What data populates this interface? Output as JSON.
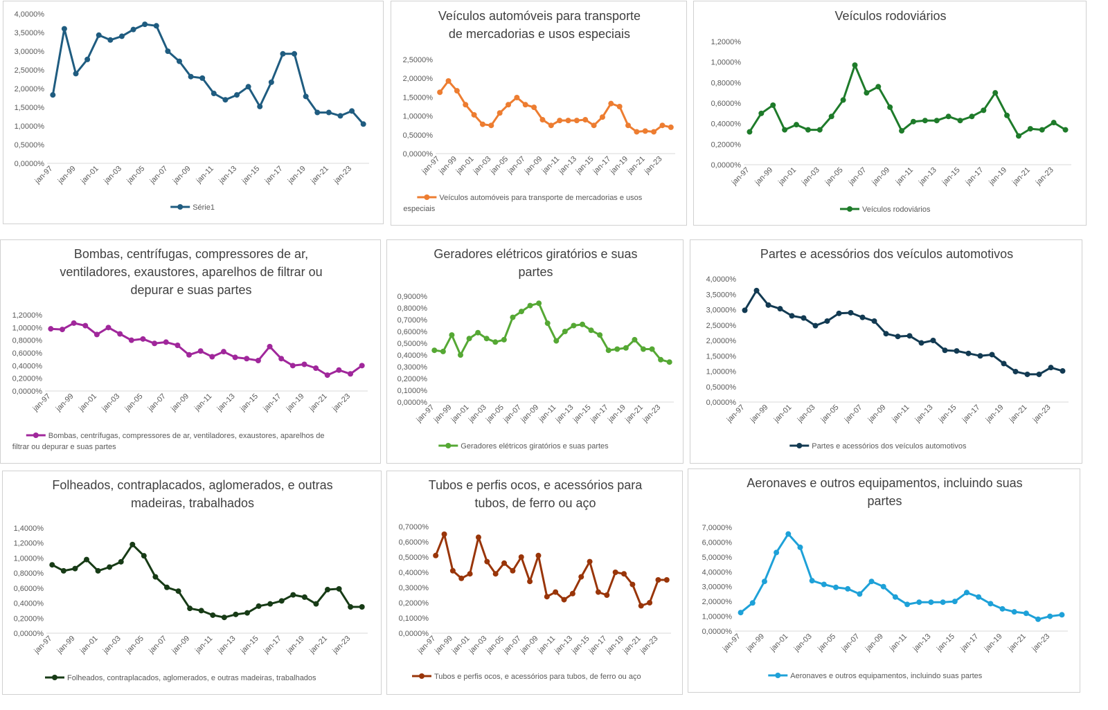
{
  "chart_data": [
    {
      "type": "line",
      "title": "",
      "color": "#1f5c80",
      "x": [
        "jan-97",
        "jan-98",
        "jan-99",
        "jan-00",
        "jan-01",
        "jan-02",
        "jan-03",
        "jan-04",
        "jan-05",
        "jan-06",
        "jan-07",
        "jan-08",
        "jan-09",
        "jan-10",
        "jan-11",
        "jan-12",
        "jan-13",
        "jan-14",
        "jan-15",
        "jan-16",
        "jan-17",
        "jan-18",
        "jan-19",
        "jan-20",
        "jan-21",
        "jan-22",
        "jan-23",
        "jan-24"
      ],
      "tick_labels": [
        "jan-97",
        "jan-99",
        "jan-01",
        "jan-03",
        "jan-05",
        "jan-07",
        "jan-09",
        "jan-11",
        "jan-13",
        "jan-15",
        "jan-17",
        "jan-19",
        "jan-21",
        "jan-23"
      ],
      "y_ticks": [
        "0,0000%",
        "0,5000%",
        "1,0000%",
        "1,5000%",
        "2,0000%",
        "2,5000%",
        "3,0000%",
        "3,5000%",
        "4,0000%"
      ],
      "ylim": [
        0,
        4.0
      ],
      "series": [
        {
          "name": "Série1",
          "values": [
            1.83,
            3.6,
            2.4,
            2.78,
            3.43,
            3.3,
            3.4,
            3.58,
            3.72,
            3.68,
            3.0,
            2.73,
            2.32,
            2.28,
            1.87,
            1.7,
            1.83,
            2.05,
            1.52,
            2.17,
            2.93,
            2.93,
            1.79,
            1.36,
            1.36,
            1.27,
            1.4,
            1.05
          ]
        }
      ],
      "legend": "bottom"
    },
    {
      "type": "line",
      "title": "Veículos automóveis para transporte de mercadorias e usos especiais",
      "color": "#ed7d31",
      "x": [
        "jan-97",
        "jan-98",
        "jan-99",
        "jan-00",
        "jan-01",
        "jan-02",
        "jan-03",
        "jan-04",
        "jan-05",
        "jan-06",
        "jan-07",
        "jan-08",
        "jan-09",
        "jan-10",
        "jan-11",
        "jan-12",
        "jan-13",
        "jan-14",
        "jan-15",
        "jan-16",
        "jan-17",
        "jan-18",
        "jan-19",
        "jan-20",
        "jan-21",
        "jan-22",
        "jan-23",
        "jan-24"
      ],
      "tick_labels": [
        "jan-97",
        "jan-99",
        "jan-01",
        "jan-03",
        "jan-05",
        "jan-07",
        "jan-09",
        "jan-11",
        "jan-13",
        "jan-15",
        "jan-17",
        "jan-19",
        "jan-21",
        "jan-23"
      ],
      "y_ticks": [
        "0,0000%",
        "0,5000%",
        "1,0000%",
        "1,5000%",
        "2,0000%",
        "2,5000%"
      ],
      "ylim": [
        0,
        2.5
      ],
      "series": [
        {
          "name": "Veículos automóveis para transporte de mercadorias e usos especiais",
          "values": [
            1.63,
            1.93,
            1.67,
            1.3,
            1.03,
            0.78,
            0.75,
            1.08,
            1.3,
            1.49,
            1.3,
            1.23,
            0.9,
            0.75,
            0.88,
            0.88,
            0.88,
            0.9,
            0.75,
            0.97,
            1.33,
            1.25,
            0.75,
            0.58,
            0.6,
            0.58,
            0.75,
            0.7
          ]
        }
      ],
      "legend": "bottom"
    },
    {
      "type": "line",
      "title": "Veículos rodoviários",
      "color": "#1e7b2a",
      "x": [
        "jan-97",
        "jan-98",
        "jan-99",
        "jan-00",
        "jan-01",
        "jan-02",
        "jan-03",
        "jan-04",
        "jan-05",
        "jan-06",
        "jan-07",
        "jan-08",
        "jan-09",
        "jan-10",
        "jan-11",
        "jan-12",
        "jan-13",
        "jan-14",
        "jan-15",
        "jan-16",
        "jan-17",
        "jan-18",
        "jan-19",
        "jan-20",
        "jan-21",
        "jan-22",
        "jan-23",
        "jan-24"
      ],
      "tick_labels": [
        "jan-97",
        "jan-99",
        "jan-01",
        "jan-03",
        "jan-05",
        "jan-07",
        "jan-09",
        "jan-11",
        "jan-13",
        "jan-15",
        "jan-17",
        "jan-19",
        "jan-21",
        "jan-23"
      ],
      "y_ticks": [
        "0,0000%",
        "0,2000%",
        "0,4000%",
        "0,6000%",
        "0,8000%",
        "1,0000%",
        "1,2000%"
      ],
      "ylim": [
        0,
        1.2
      ],
      "series": [
        {
          "name": "Veículos rodoviários",
          "values": [
            0.32,
            0.5,
            0.58,
            0.34,
            0.39,
            0.34,
            0.34,
            0.47,
            0.63,
            0.97,
            0.7,
            0.76,
            0.56,
            0.33,
            0.42,
            0.43,
            0.43,
            0.47,
            0.43,
            0.47,
            0.53,
            0.7,
            0.48,
            0.28,
            0.35,
            0.34,
            0.41,
            0.34
          ]
        }
      ],
      "legend": "bottom"
    },
    {
      "type": "line",
      "title": "Bombas, centrífugas, compressores de ar, ventiladores, exaustores, aparelhos de filtrar ou depurar e suas partes",
      "color": "#a0279b",
      "x": [
        "jan-97",
        "jan-98",
        "jan-99",
        "jan-00",
        "jan-01",
        "jan-02",
        "jan-03",
        "jan-04",
        "jan-05",
        "jan-06",
        "jan-07",
        "jan-08",
        "jan-09",
        "jan-10",
        "jan-11",
        "jan-12",
        "jan-13",
        "jan-14",
        "jan-15",
        "jan-16",
        "jan-17",
        "jan-18",
        "jan-19",
        "jan-20",
        "jan-21",
        "jan-22",
        "jan-23",
        "jan-24"
      ],
      "tick_labels": [
        "jan-97",
        "jan-99",
        "jan-01",
        "jan-03",
        "jan-05",
        "jan-07",
        "jan-09",
        "jan-11",
        "jan-13",
        "jan-15",
        "jan-17",
        "jan-19",
        "jan-21",
        "jan-23"
      ],
      "y_ticks": [
        "0,0000%",
        "0,2000%",
        "0,4000%",
        "0,6000%",
        "0,8000%",
        "1,0000%",
        "1,2000%"
      ],
      "ylim": [
        0,
        1.2
      ],
      "series": [
        {
          "name": "Bombas, centrífugas, compressores de ar, ventiladores, exaustores, aparelhos de filtrar ou depurar e suas partes",
          "values": [
            0.98,
            0.97,
            1.07,
            1.03,
            0.89,
            1.0,
            0.9,
            0.8,
            0.82,
            0.75,
            0.77,
            0.72,
            0.57,
            0.63,
            0.54,
            0.62,
            0.53,
            0.51,
            0.48,
            0.7,
            0.51,
            0.4,
            0.42,
            0.36,
            0.25,
            0.33,
            0.27,
            0.4
          ]
        }
      ],
      "legend": "bottom"
    },
    {
      "type": "line",
      "title": "Geradores elétricos giratórios e suas partes",
      "color": "#55a834",
      "x": [
        "jan-97",
        "jan-98",
        "jan-99",
        "jan-00",
        "jan-01",
        "jan-02",
        "jan-03",
        "jan-04",
        "jan-05",
        "jan-06",
        "jan-07",
        "jan-08",
        "jan-09",
        "jan-10",
        "jan-11",
        "jan-12",
        "jan-13",
        "jan-14",
        "jan-15",
        "jan-16",
        "jan-17",
        "jan-18",
        "jan-19",
        "jan-20",
        "jan-21",
        "jan-22",
        "jan-23",
        "jan-24"
      ],
      "tick_labels": [
        "jan-97",
        "jan-99",
        "jan-01",
        "jan-03",
        "jan-05",
        "jan-07",
        "jan-09",
        "jan-11",
        "jan-13",
        "jan-15",
        "jan-17",
        "jan-19",
        "jan-21",
        "jan-23"
      ],
      "y_ticks": [
        "0,0000%",
        "0,1000%",
        "0,2000%",
        "0,3000%",
        "0,4000%",
        "0,5000%",
        "0,6000%",
        "0,7000%",
        "0,8000%",
        "0,9000%"
      ],
      "ylim": [
        0,
        0.9
      ],
      "series": [
        {
          "name": "Geradores elétricos giratórios e suas partes",
          "values": [
            0.44,
            0.43,
            0.57,
            0.4,
            0.54,
            0.59,
            0.54,
            0.51,
            0.53,
            0.72,
            0.77,
            0.82,
            0.84,
            0.67,
            0.52,
            0.6,
            0.65,
            0.66,
            0.61,
            0.57,
            0.44,
            0.45,
            0.46,
            0.53,
            0.45,
            0.45,
            0.36,
            0.34
          ]
        }
      ],
      "legend": "bottom"
    },
    {
      "type": "line",
      "title": "Partes e acessórios dos veículos automotivos",
      "color": "#123a52",
      "x": [
        "jan-97",
        "jan-98",
        "jan-99",
        "jan-00",
        "jan-01",
        "jan-02",
        "jan-03",
        "jan-04",
        "jan-05",
        "jan-06",
        "jan-07",
        "jan-08",
        "jan-09",
        "jan-10",
        "jan-11",
        "jan-12",
        "jan-13",
        "jan-14",
        "jan-15",
        "jan-16",
        "jan-17",
        "jan-18",
        "jan-19",
        "jan-20",
        "jan-21",
        "jan-22",
        "jan-23",
        "jan-24"
      ],
      "tick_labels": [
        "jan-97",
        "jan-99",
        "jan-01",
        "jan-03",
        "jan-05",
        "jan-07",
        "jan-09",
        "jan-11",
        "jan-13",
        "jan-15",
        "jan-17",
        "jan-19",
        "jan-21",
        "jan-23"
      ],
      "y_ticks": [
        "0,0000%",
        "0,5000%",
        "1,0000%",
        "1,5000%",
        "2,0000%",
        "2,5000%",
        "3,0000%",
        "3,5000%",
        "4,0000%"
      ],
      "ylim": [
        0,
        4.0
      ],
      "series": [
        {
          "name": "Partes e acessórios dos veículos automotivos",
          "values": [
            2.98,
            3.62,
            3.15,
            3.03,
            2.8,
            2.73,
            2.48,
            2.63,
            2.88,
            2.9,
            2.75,
            2.63,
            2.22,
            2.13,
            2.15,
            1.92,
            2.0,
            1.68,
            1.66,
            1.58,
            1.5,
            1.54,
            1.25,
            0.99,
            0.9,
            0.9,
            1.12,
            1.01
          ]
        }
      ],
      "legend": "bottom"
    },
    {
      "type": "line",
      "title": "Folheados, contraplacados, aglomerados, e outras madeiras, trabalhados",
      "color": "#173b16",
      "x": [
        "jan-97",
        "jan-98",
        "jan-99",
        "jan-00",
        "jan-01",
        "jan-02",
        "jan-03",
        "jan-04",
        "jan-05",
        "jan-06",
        "jan-07",
        "jan-08",
        "jan-09",
        "jan-10",
        "jan-11",
        "jan-12",
        "jan-13",
        "jan-14",
        "jan-15",
        "jan-16",
        "jan-17",
        "jan-18",
        "jan-19",
        "jan-20",
        "jan-21",
        "jan-22",
        "jan-23",
        "jan-24"
      ],
      "tick_labels": [
        "jan-97",
        "jan-99",
        "jan-01",
        "jan-03",
        "jan-05",
        "jan-07",
        "jan-09",
        "jan-11",
        "jan-13",
        "jan-15",
        "jan-17",
        "jan-19",
        "jan-21",
        "jan-23"
      ],
      "y_ticks": [
        "0,0000%",
        "0,2000%",
        "0,4000%",
        "0,6000%",
        "0,8000%",
        "1,0000%",
        "1,2000%",
        "1,4000%"
      ],
      "ylim": [
        0,
        1.4
      ],
      "series": [
        {
          "name": "Folheados, contraplacados, aglomerados, e outras madeiras, trabalhados",
          "values": [
            0.91,
            0.83,
            0.86,
            0.98,
            0.83,
            0.88,
            0.95,
            1.18,
            1.03,
            0.75,
            0.61,
            0.56,
            0.33,
            0.3,
            0.24,
            0.21,
            0.25,
            0.27,
            0.36,
            0.39,
            0.43,
            0.51,
            0.48,
            0.39,
            0.58,
            0.59,
            0.35,
            0.35
          ]
        }
      ],
      "legend": "bottom"
    },
    {
      "type": "line",
      "title": "Tubos e perfis ocos, e acessórios para tubos, de ferro ou aço",
      "color": "#993509",
      "x": [
        "jan-97",
        "jan-98",
        "jan-99",
        "jan-00",
        "jan-01",
        "jan-02",
        "jan-03",
        "jan-04",
        "jan-05",
        "jan-06",
        "jan-07",
        "jan-08",
        "jan-09",
        "jan-10",
        "jan-11",
        "jan-12",
        "jan-13",
        "jan-14",
        "jan-15",
        "jan-16",
        "jan-17",
        "jan-18",
        "jan-19",
        "jan-20",
        "jan-21",
        "jan-22",
        "jan-23",
        "jan-24"
      ],
      "tick_labels": [
        "jan-97",
        "jan-99",
        "jan-01",
        "jan-03",
        "jan-05",
        "jan-07",
        "jan-09",
        "jan-11",
        "jan-13",
        "jan-15",
        "jan-17",
        "jan-19",
        "jan-21",
        "jan-23"
      ],
      "y_ticks": [
        "0,0000%",
        "0,1000%",
        "0,2000%",
        "0,3000%",
        "0,4000%",
        "0,5000%",
        "0,6000%",
        "0,7000%"
      ],
      "ylim": [
        0,
        0.7
      ],
      "series": [
        {
          "name": "Tubos e perfis ocos, e acessórios para tubos, de ferro ou aço",
          "values": [
            0.51,
            0.65,
            0.41,
            0.36,
            0.39,
            0.63,
            0.47,
            0.39,
            0.46,
            0.41,
            0.5,
            0.34,
            0.51,
            0.24,
            0.27,
            0.22,
            0.26,
            0.37,
            0.47,
            0.27,
            0.25,
            0.4,
            0.39,
            0.32,
            0.18,
            0.2,
            0.35,
            0.35
          ]
        }
      ],
      "legend": "bottom"
    },
    {
      "type": "line",
      "title": "Aeronaves e outros equipamentos, incluindo suas partes",
      "color": "#1ea1d8",
      "x": [
        "jan-97",
        "jan-98",
        "jan-99",
        "jan-00",
        "jan-01",
        "jan-02",
        "jan-03",
        "jan-04",
        "jan-05",
        "jan-06",
        "jan-07",
        "jan-08",
        "jan-09",
        "jan-10",
        "jan-11",
        "jan-12",
        "jan-13",
        "jan-14",
        "jan-15",
        "jan-16",
        "jan-17",
        "jan-18",
        "jan-19",
        "jan-20",
        "jan-21",
        "jan-22",
        "jan-23",
        "jan-24"
      ],
      "tick_labels": [
        "jan-97",
        "jan-99",
        "jan-01",
        "jan-03",
        "jan-05",
        "jan-07",
        "jan-09",
        "jan-11",
        "jan-13",
        "jan-15",
        "jan-17",
        "jan-19",
        "jan-21",
        "jan-23"
      ],
      "y_ticks": [
        "0,0000%",
        "1,0000%",
        "2,0000%",
        "3,0000%",
        "4,0000%",
        "5,0000%",
        "6,0000%",
        "7,0000%"
      ],
      "ylim": [
        0,
        7.0
      ],
      "series": [
        {
          "name": "Aeronaves e outros equipamentos, incluindo suas partes",
          "values": [
            1.25,
            1.9,
            3.35,
            5.3,
            6.55,
            5.65,
            3.4,
            3.15,
            2.95,
            2.85,
            2.5,
            3.35,
            3.0,
            2.3,
            1.8,
            1.95,
            1.95,
            1.95,
            2.0,
            2.6,
            2.3,
            1.85,
            1.5,
            1.3,
            1.2,
            0.8,
            1.0,
            1.1
          ]
        }
      ],
      "legend": "bottom"
    }
  ]
}
